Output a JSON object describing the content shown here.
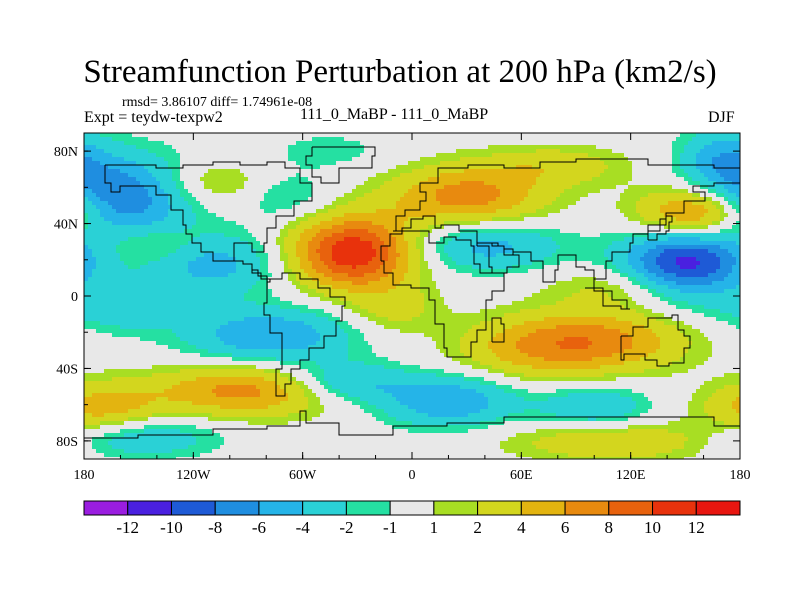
{
  "chart_data": {
    "type": "heatmap",
    "title": "Streamfunction Perturbation at 200 hPa (km2/s)",
    "stats_line": "rmsd= 3.86107 diff= 1.74961e-08",
    "experiment_label": "Expt = teydw-texpw2",
    "subtitle": "111_0_MaBP - 111_0_MaBP",
    "season": "DJF",
    "x_range": [
      -180,
      180
    ],
    "y_range": [
      -90,
      90
    ],
    "x_ticks": [
      {
        "value": -180,
        "label": "180"
      },
      {
        "value": -120,
        "label": "120W"
      },
      {
        "value": -60,
        "label": "60W"
      },
      {
        "value": 0,
        "label": "0"
      },
      {
        "value": 60,
        "label": "60E"
      },
      {
        "value": 120,
        "label": "120E"
      },
      {
        "value": 180,
        "label": "180"
      }
    ],
    "y_ticks": [
      {
        "value": 80,
        "label": "80N"
      },
      {
        "value": 40,
        "label": "40N"
      },
      {
        "value": 0,
        "label": "0"
      },
      {
        "value": -40,
        "label": "40S"
      },
      {
        "value": -80,
        "label": "80S"
      }
    ],
    "colorbar": {
      "labels": [
        "-12",
        "-10",
        "-8",
        "-6",
        "-4",
        "-2",
        "-1",
        "1",
        "2",
        "4",
        "6",
        "8",
        "10",
        "12"
      ],
      "colors": [
        "#9a1de0",
        "#4a20e0",
        "#1e5ad6",
        "#1f8ee0",
        "#25b4e8",
        "#2ad1d6",
        "#25e0a2",
        "#e8e8e8",
        "#a8de23",
        "#d3d61e",
        "#e3b410",
        "#e88a0f",
        "#e8620d",
        "#e8320c",
        "#e81610"
      ]
    },
    "features": [
      {
        "lon": -158,
        "lat": 55,
        "value": -8,
        "sx": 26,
        "sy": 16
      },
      {
        "lon": -110,
        "lat": 18,
        "value": -5,
        "sx": 28,
        "sy": 12
      },
      {
        "lon": -78,
        "lat": -22,
        "value": -6,
        "sx": 32,
        "sy": 11
      },
      {
        "lon": -160,
        "lat": -8,
        "value": -3,
        "sx": 22,
        "sy": 9
      },
      {
        "lon": -110,
        "lat": 62,
        "value": 3,
        "sx": 24,
        "sy": 9
      },
      {
        "lon": -70,
        "lat": 55,
        "value": -2.5,
        "sx": 18,
        "sy": 10
      },
      {
        "lon": -32,
        "lat": 24,
        "value": 12,
        "sx": 24,
        "sy": 14
      },
      {
        "lon": -10,
        "lat": -8,
        "value": 2.5,
        "sx": 18,
        "sy": 10
      },
      {
        "lon": -45,
        "lat": 80,
        "value": -1.5,
        "sx": 26,
        "sy": 8
      },
      {
        "lon": 30,
        "lat": 55,
        "value": 7,
        "sx": 30,
        "sy": 12
      },
      {
        "lon": 40,
        "lat": 28,
        "value": -5,
        "sx": 30,
        "sy": 10
      },
      {
        "lon": 60,
        "lat": -30,
        "value": 3,
        "sx": 28,
        "sy": 12
      },
      {
        "lon": 100,
        "lat": -25,
        "value": 7,
        "sx": 34,
        "sy": 12
      },
      {
        "lon": 150,
        "lat": 18,
        "value": -11,
        "sx": 24,
        "sy": 14
      },
      {
        "lon": 155,
        "lat": 45,
        "value": 8,
        "sx": 22,
        "sy": 10
      },
      {
        "lon": 170,
        "lat": 75,
        "value": -5,
        "sx": 16,
        "sy": 12
      },
      {
        "lon": -90,
        "lat": -52,
        "value": 7,
        "sx": 36,
        "sy": 10
      },
      {
        "lon": -170,
        "lat": -62,
        "value": 5,
        "sx": 22,
        "sy": 10
      },
      {
        "lon": -150,
        "lat": -78,
        "value": -4,
        "sx": 30,
        "sy": 8
      },
      {
        "lon": -38,
        "lat": -48,
        "value": -5,
        "sx": 24,
        "sy": 8
      },
      {
        "lon": 20,
        "lat": -58,
        "value": -6,
        "sx": 26,
        "sy": 10
      },
      {
        "lon": 100,
        "lat": -62,
        "value": -4,
        "sx": 22,
        "sy": 9
      },
      {
        "lon": 110,
        "lat": -80,
        "value": 4,
        "sx": 40,
        "sy": 8
      },
      {
        "lon": 80,
        "lat": 72,
        "value": 3,
        "sx": 28,
        "sy": 8
      },
      {
        "lon": -140,
        "lat": 28,
        "value": 2.5,
        "sx": 20,
        "sy": 8
      },
      {
        "lon": 120,
        "lat": 5,
        "value": 3,
        "sx": 30,
        "sy": 8
      }
    ]
  }
}
